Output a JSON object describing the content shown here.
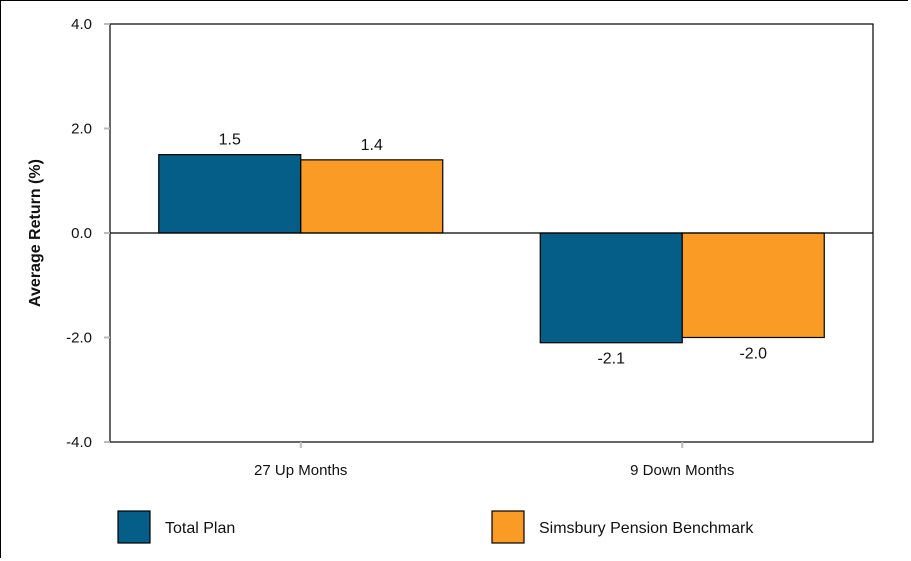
{
  "chart_data": {
    "type": "bar",
    "categories": [
      "27 Up Months",
      "9 Down Months"
    ],
    "series": [
      {
        "name": "Total Plan",
        "values": [
          1.5,
          -2.1
        ],
        "color": "#045e87"
      },
      {
        "name": "Simsbury Pension Benchmark",
        "values": [
          1.4,
          -2.0
        ],
        "color": "#f99b25"
      }
    ],
    "data_labels": [
      [
        "1.5",
        "-2.1"
      ],
      [
        "1.4",
        "-2.0"
      ]
    ],
    "ylabel": "Average Return (%)",
    "xlabel": "",
    "title": "",
    "ylim": [
      -4.0,
      4.0
    ],
    "yticks": [
      "4.0",
      "2.0",
      "0.0",
      "-2.0",
      "-4.0"
    ],
    "ytick_values": [
      4,
      2,
      0,
      -2,
      -4
    ],
    "grid": false,
    "legend_position": "bottom"
  }
}
